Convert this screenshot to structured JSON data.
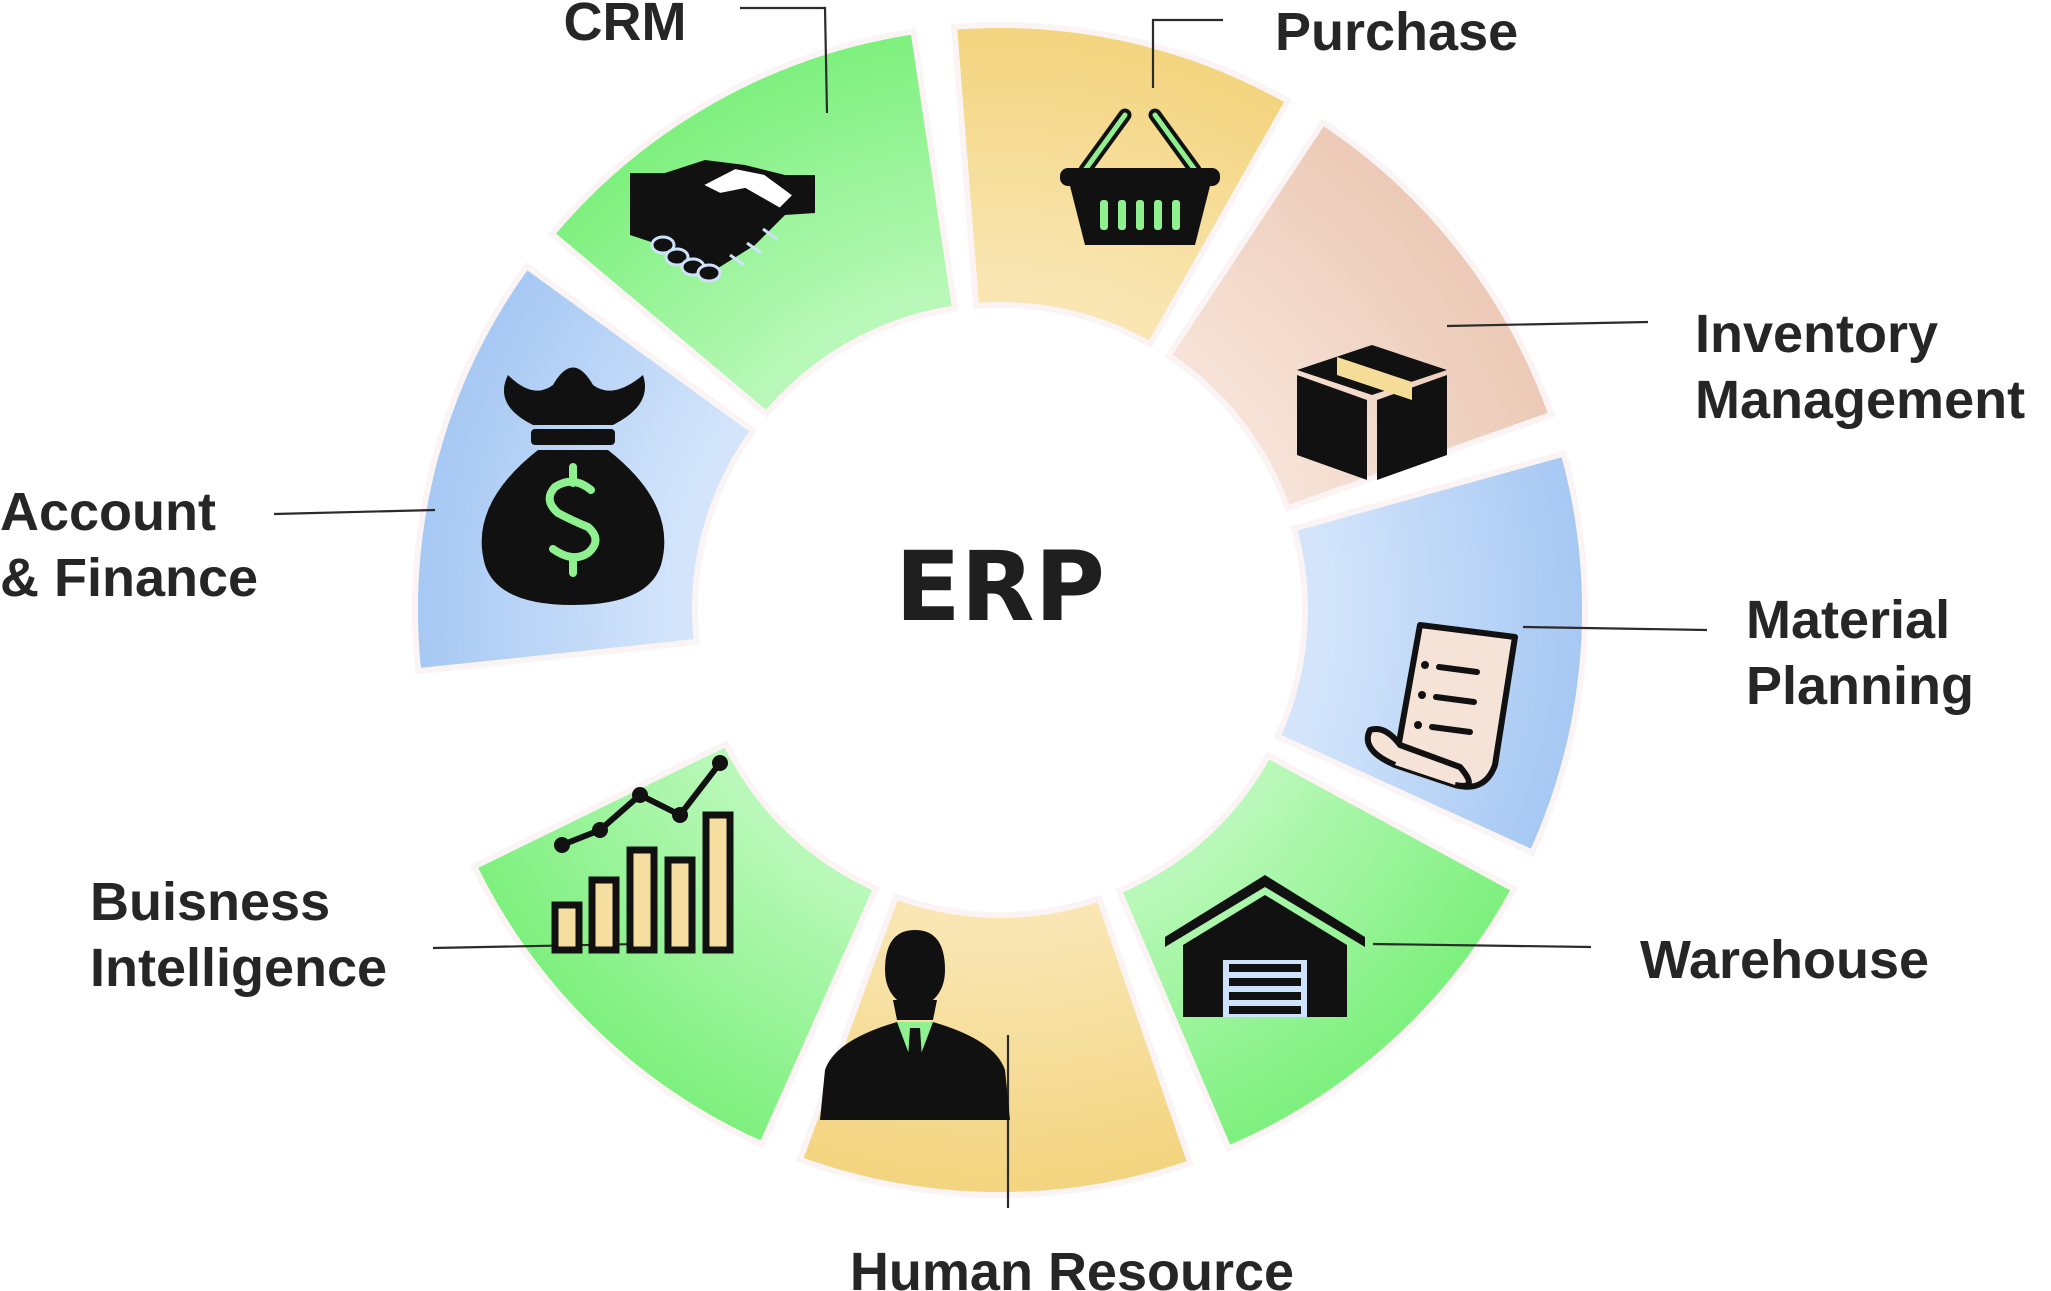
{
  "center": {
    "label": "ERP"
  },
  "modules": [
    {
      "id": "crm",
      "label_lines": [
        "CRM"
      ],
      "icon": "handshake-icon",
      "color": "blue"
    },
    {
      "id": "purchase",
      "label_lines": [
        "Purchase"
      ],
      "icon": "shopping-basket-icon",
      "color": "green"
    },
    {
      "id": "inventory",
      "label_lines": [
        "Inventory",
        "Management"
      ],
      "icon": "box-icon",
      "color": "yellow"
    },
    {
      "id": "material",
      "label_lines": [
        "Material",
        "Planning"
      ],
      "icon": "receipt-scroll-icon",
      "color": "peach"
    },
    {
      "id": "warehouse",
      "label_lines": [
        "Warehouse"
      ],
      "icon": "warehouse-icon",
      "color": "blue"
    },
    {
      "id": "hr",
      "label_lines": [
        "Human Resource"
      ],
      "icon": "businessman-icon",
      "color": "green"
    },
    {
      "id": "bi",
      "label_lines": [
        "Buisness",
        "Intelligence"
      ],
      "icon": "bar-chart-trend-icon",
      "color": "yellow"
    },
    {
      "id": "finance",
      "label_lines": [
        "Account",
        "& Finance"
      ],
      "icon": "money-bag-icon",
      "color": "green"
    }
  ],
  "colors": {
    "blue": [
      "#a6c8f3",
      "#d4e5fb"
    ],
    "green": [
      "#7df07d",
      "#b8f8b8"
    ],
    "yellow": [
      "#f3d47e",
      "#f9e6b3"
    ],
    "peach": [
      "#ecc9b6",
      "#f6e2d6"
    ],
    "icon": "#111111",
    "icon_accent": "#8ef08e"
  }
}
